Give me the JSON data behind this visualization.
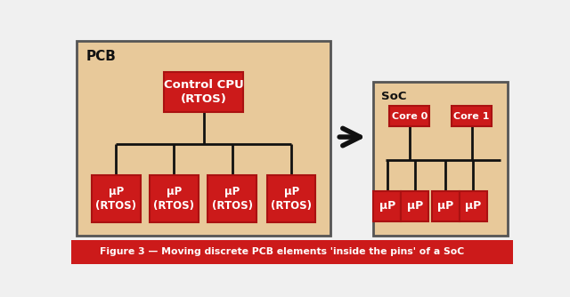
{
  "bg_color": "#f0f0f0",
  "pcb_box_color": "#e8c99a",
  "pcb_box_edge": "#555555",
  "soc_box_color": "#e8c99a",
  "soc_box_edge": "#555555",
  "red_box_color": "#cc1a1a",
  "red_box_edge": "#aa1111",
  "line_color": "#111111",
  "arrow_color": "#111111",
  "text_color_white": "#ffffff",
  "text_color_dark": "#111111",
  "footer_bg": "#cc1a1a",
  "footer_text": "Figure 3 — Moving discrete PCB elements 'inside the pins' of a SoC",
  "footer_text_color": "#ffffff",
  "pcb_label": "PCB",
  "soc_label": "SoC",
  "cpu_text": "Control CPU\n(RTOS)",
  "up_rtos": "μP\n(RTOS)",
  "up": "μP",
  "core0": "Core 0",
  "core1": "Core 1"
}
